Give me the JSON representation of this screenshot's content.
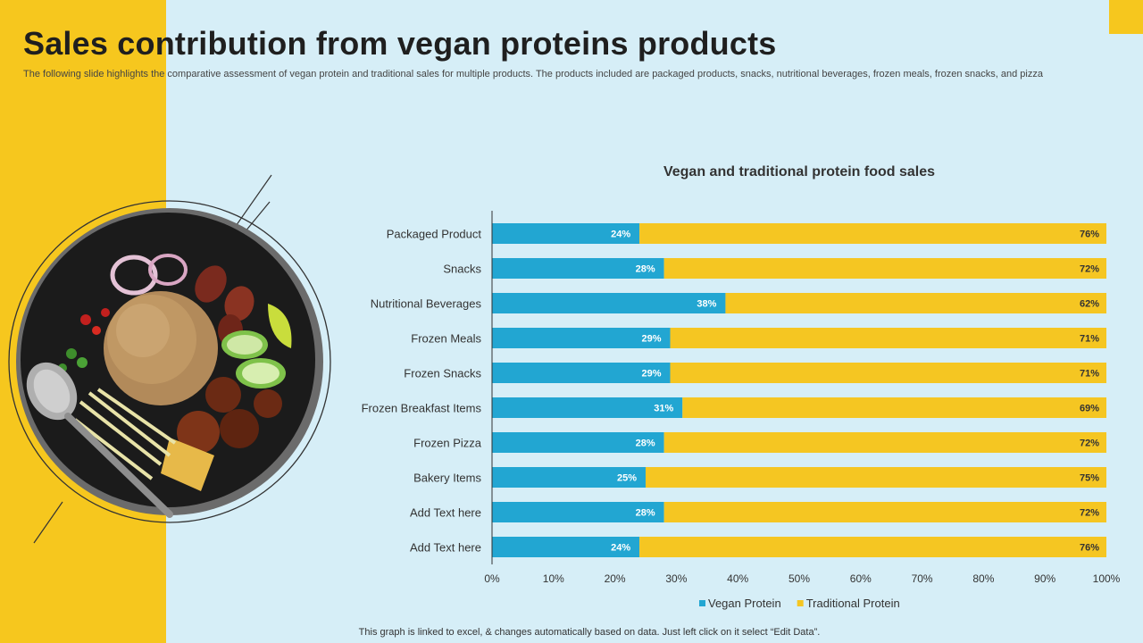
{
  "header": {
    "title": "Sales contribution from vegan proteins products",
    "subtitle": "The following slide highlights the comparative assessment of vegan protein and traditional sales for multiple products. The products included are packaged products, snacks, nutritional beverages, frozen meals, frozen snacks, and pizza"
  },
  "footer": {
    "note": "This graph is linked to excel, & changes automatically based on data. Just left click on it select “Edit Data”."
  },
  "colors": {
    "vegan": "#22A6D2",
    "traditional": "#F5C622",
    "accent": "#F6C71E",
    "background": "#D6EEF7"
  },
  "chart_data": {
    "type": "bar",
    "orientation": "horizontal",
    "stacked": true,
    "title": "Vegan and traditional protein food sales",
    "categories": [
      "Packaged Product",
      "Snacks",
      "Nutritional Beverages",
      "Frozen Meals",
      "Frozen Snacks",
      "Frozen Breakfast Items",
      "Frozen Pizza",
      "Bakery Items",
      "Add Text here",
      "Add Text here"
    ],
    "series": [
      {
        "name": "Vegan Protein",
        "values": [
          24,
          28,
          38,
          29,
          29,
          31,
          28,
          25,
          28,
          24
        ]
      },
      {
        "name": "Traditional Protein",
        "values": [
          76,
          72,
          62,
          71,
          71,
          69,
          72,
          75,
          72,
          76
        ]
      }
    ],
    "xlim": [
      0,
      100
    ],
    "xticks": [
      "0%",
      "10%",
      "20%",
      "30%",
      "40%",
      "50%",
      "60%",
      "70%",
      "80%",
      "90%",
      "100%"
    ],
    "value_suffix": "%",
    "legend": "bottom",
    "grid": false
  }
}
